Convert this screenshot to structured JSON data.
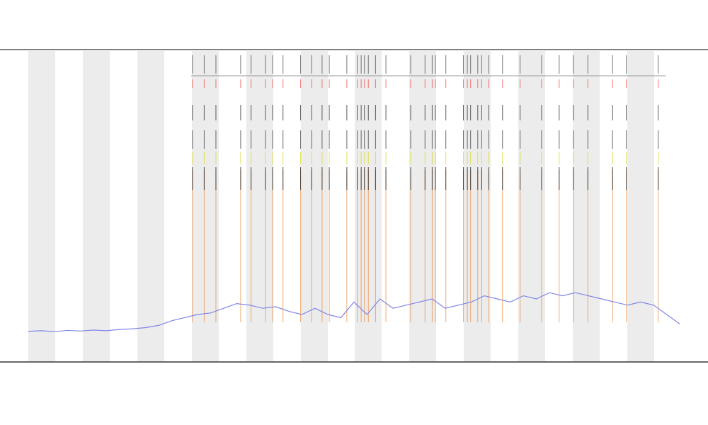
{
  "chart_data": {
    "type": "line",
    "xlim": [
      0,
      100
    ],
    "ylim": [
      0,
      100
    ],
    "series": [
      {
        "color": "#7f85e6",
        "x": [
          0,
          2,
          4,
          6,
          8,
          10,
          12,
          14,
          16,
          18,
          20,
          22,
          24,
          26,
          28,
          30,
          32,
          34,
          36,
          38,
          40,
          42,
          44,
          46,
          48,
          50,
          52,
          54,
          56,
          58,
          60,
          62,
          64,
          66,
          68,
          70,
          72,
          74,
          76,
          78,
          80,
          82,
          84,
          86,
          88,
          90,
          92,
          94,
          96,
          98,
          100
        ],
        "values": [
          9.6,
          9.8,
          9.5,
          9.9,
          9.7,
          10,
          9.8,
          10.2,
          10.4,
          10.8,
          11.5,
          13,
          14,
          15,
          15.5,
          17,
          18.5,
          18,
          17,
          17.5,
          16,
          15,
          17,
          15,
          14,
          19,
          15,
          20,
          17,
          18,
          19,
          20,
          17,
          18,
          19,
          21,
          20,
          19,
          21,
          20,
          22,
          21,
          22,
          21,
          20,
          19,
          18,
          19,
          18,
          15,
          12
        ]
      }
    ],
    "events": {
      "color": "#e8873a",
      "x": [
        25.2,
        27,
        28.8,
        32.6,
        34.2,
        36.4,
        37.5,
        39.1,
        41.8,
        43.5,
        45.1,
        46.2,
        48.9,
        50.5,
        51.1,
        51.6,
        52.2,
        53.3,
        54.9,
        58.7,
        60.9,
        62,
        62.5,
        64.1,
        66.8,
        67.4,
        67.9,
        69,
        69.6,
        70.7,
        72.8,
        75.5,
        78.8,
        81.5,
        83.7,
        85.9,
        89.7,
        91.8,
        96.7
      ]
    }
  }
}
